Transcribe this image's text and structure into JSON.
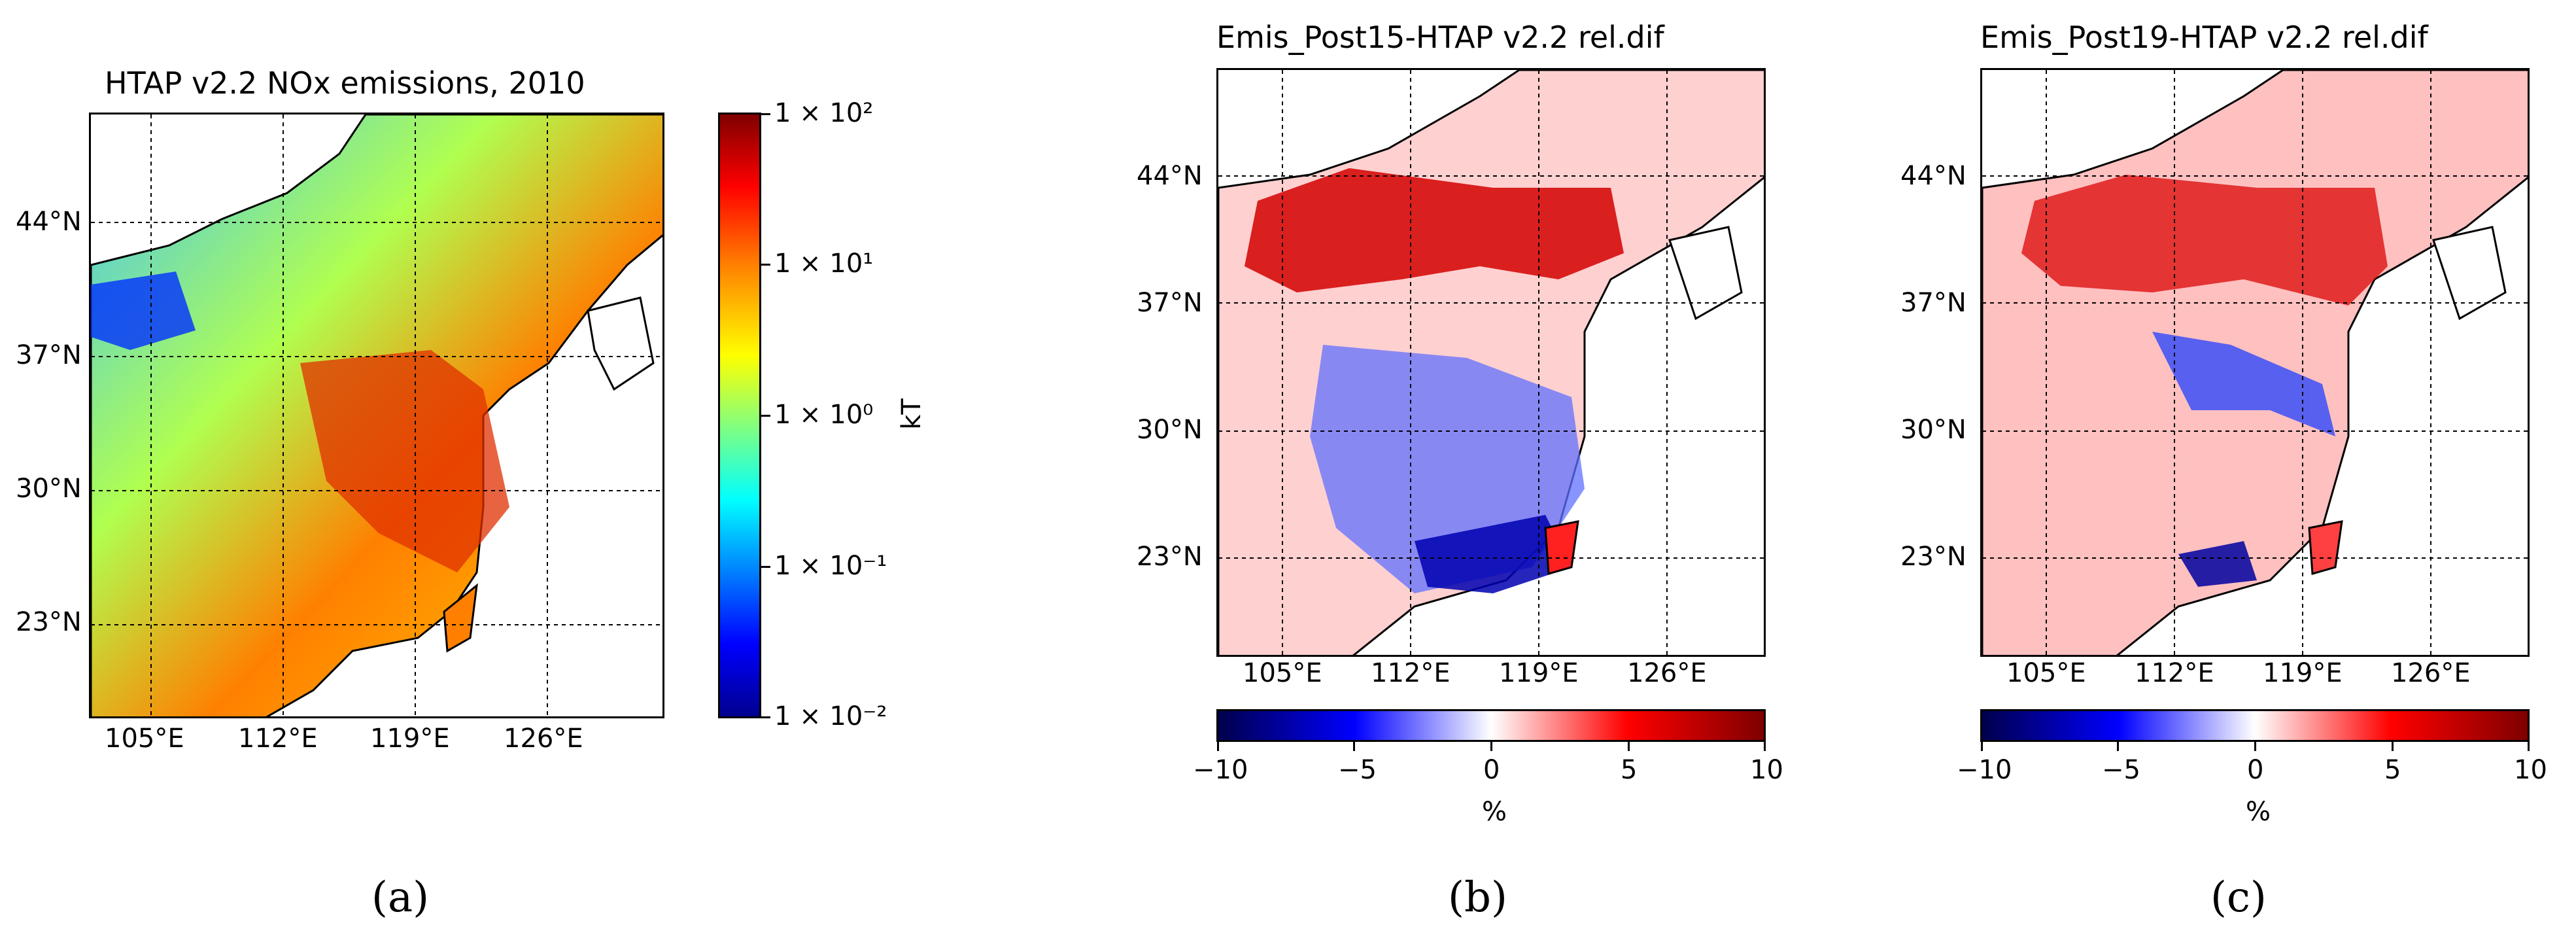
{
  "figure": {
    "panels": [
      {
        "id": "a",
        "title": "HTAP v2.2 NOx emissions, 2010",
        "subfigure_label": "(a)",
        "lat_labels": [
          "44°N",
          "37°N",
          "30°N",
          "23°N"
        ],
        "lon_labels": [
          "105°E",
          "112°E",
          "119°E",
          "126°E"
        ],
        "colorbar": {
          "orientation": "vertical",
          "scale": "log",
          "unit_label": "kT",
          "ticks": [
            "1 × 10²",
            "1 × 10¹",
            "1 × 10⁰",
            "1 × 10⁻¹",
            "1 × 10⁻²"
          ],
          "colormap": "jet"
        }
      },
      {
        "id": "b",
        "title": "Emis_Post15-HTAP v2.2 rel.dif",
        "subfigure_label": "(b)",
        "lat_labels": [
          "44°N",
          "37°N",
          "30°N",
          "23°N"
        ],
        "lon_labels": [
          "105°E",
          "112°E",
          "119°E",
          "126°E"
        ],
        "colorbar": {
          "orientation": "horizontal",
          "unit_label": "%",
          "ticks": [
            "−10",
            "−5",
            "0",
            "5",
            "10"
          ],
          "colormap": "seismic"
        }
      },
      {
        "id": "c",
        "title": "Emis_Post19-HTAP v2.2 rel.dif",
        "subfigure_label": "(c)",
        "lat_labels": [
          "44°N",
          "37°N",
          "30°N",
          "23°N"
        ],
        "lon_labels": [
          "105°E",
          "112°E",
          "119°E",
          "126°E"
        ],
        "colorbar": {
          "orientation": "horizontal",
          "unit_label": "%",
          "ticks": [
            "−10",
            "−5",
            "0",
            "5",
            "10"
          ],
          "colormap": "seismic"
        }
      }
    ]
  },
  "colors": {
    "jet": [
      "#00008f",
      "#0000ff",
      "#0080ff",
      "#00ffff",
      "#80ff80",
      "#ffff00",
      "#ff8000",
      "#ff0000",
      "#800000"
    ],
    "seismic": [
      "#00004c",
      "#0000ff",
      "#ffffff",
      "#ff0000",
      "#7f0000"
    ],
    "coast": "#000000",
    "ocean": "#ffffff"
  }
}
